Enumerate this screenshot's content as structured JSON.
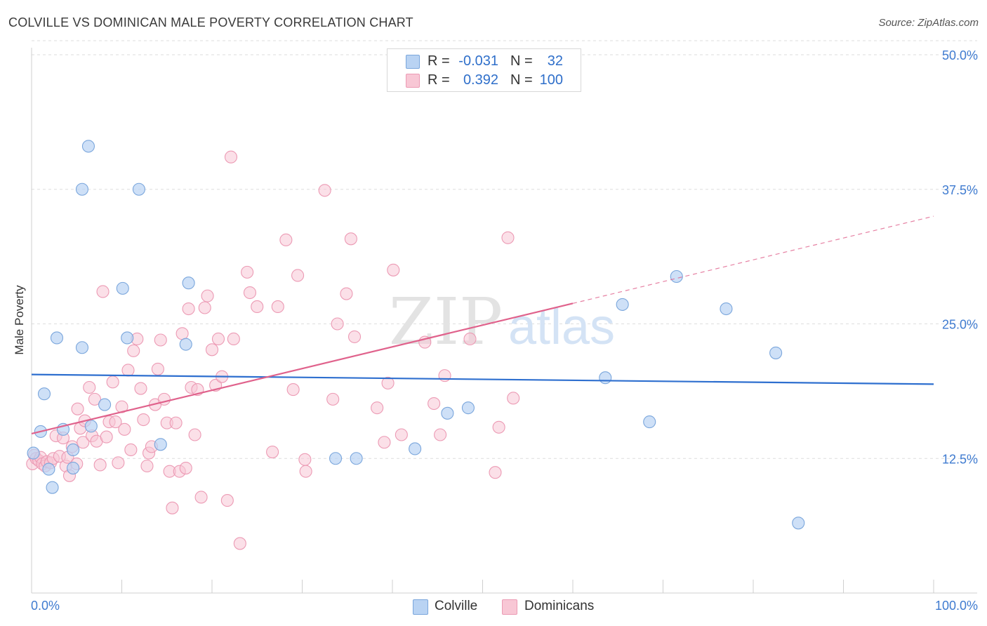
{
  "title": "COLVILLE VS DOMINICAN MALE POVERTY CORRELATION CHART",
  "source": "Source: ZipAtlas.com",
  "watermark": {
    "zip": "ZIP",
    "atlas": "atlas"
  },
  "legend_top": [
    {
      "r_label": "R =",
      "r_value": "-0.031",
      "n_label": "N =",
      "n_value": "32"
    },
    {
      "r_label": "R =",
      "r_value": "0.392",
      "n_label": "N =",
      "n_value": "100"
    }
  ],
  "legend_bottom": [
    "Colville",
    "Dominicans"
  ],
  "colors": {
    "colville_fill": "#b9d3f3",
    "colville_stroke": "#7aa6dc",
    "colville_line": "#2e6fcf",
    "dominican_fill": "#f8c7d5",
    "dominican_stroke": "#ec9ab4",
    "dominican_line": "#e0628c",
    "tick_label": "#3f7bd0",
    "grid": "#dedede"
  },
  "chart_data": {
    "type": "scatter",
    "title": "COLVILLE VS DOMINICAN MALE POVERTY CORRELATION CHART",
    "xlabel": "",
    "ylabel": "Male Poverty",
    "xlim": [
      0,
      100
    ],
    "ylim": [
      0,
      50
    ],
    "x_tick_labels": [
      "0.0%",
      "100.0%"
    ],
    "y_ticks": [
      12.5,
      25.0,
      37.5,
      50.0
    ],
    "y_tick_labels": [
      "12.5%",
      "25.0%",
      "37.5%",
      "50.0%"
    ],
    "grid": true,
    "legend_position": "top-center",
    "series": [
      {
        "name": "Colville",
        "points": [
          [
            0.2,
            13.0
          ],
          [
            1.0,
            15.0
          ],
          [
            1.4,
            18.5
          ],
          [
            1.9,
            11.5
          ],
          [
            2.3,
            9.8
          ],
          [
            2.8,
            23.7
          ],
          [
            3.5,
            15.2
          ],
          [
            4.6,
            11.6
          ],
          [
            4.6,
            13.3
          ],
          [
            5.6,
            22.8
          ],
          [
            5.6,
            37.5
          ],
          [
            6.3,
            41.5
          ],
          [
            6.6,
            15.5
          ],
          [
            8.1,
            17.5
          ],
          [
            10.1,
            28.3
          ],
          [
            10.6,
            23.7
          ],
          [
            11.9,
            37.5
          ],
          [
            14.3,
            13.8
          ],
          [
            17.1,
            23.1
          ],
          [
            17.4,
            28.8
          ],
          [
            33.7,
            12.5
          ],
          [
            36.0,
            12.5
          ],
          [
            42.5,
            13.4
          ],
          [
            46.1,
            16.7
          ],
          [
            48.4,
            17.2
          ],
          [
            63.6,
            20.0
          ],
          [
            65.5,
            26.8
          ],
          [
            68.5,
            15.9
          ],
          [
            71.5,
            29.4
          ],
          [
            77.0,
            26.4
          ],
          [
            82.5,
            22.3
          ],
          [
            85.0,
            6.5
          ]
        ],
        "trend": {
          "x": [
            0,
            100
          ],
          "y": [
            20.3,
            19.4
          ]
        }
      },
      {
        "name": "Dominicans",
        "points": [
          [
            0.1,
            12.0
          ],
          [
            0.3,
            12.8
          ],
          [
            0.5,
            12.5
          ],
          [
            0.8,
            12.3
          ],
          [
            1.0,
            12.6
          ],
          [
            1.2,
            12.0
          ],
          [
            1.5,
            11.8
          ],
          [
            1.7,
            12.2
          ],
          [
            2.1,
            12.1
          ],
          [
            2.4,
            12.5
          ],
          [
            2.7,
            14.6
          ],
          [
            3.1,
            12.7
          ],
          [
            3.5,
            14.4
          ],
          [
            3.8,
            11.8
          ],
          [
            4.0,
            12.6
          ],
          [
            4.2,
            10.9
          ],
          [
            4.5,
            13.6
          ],
          [
            5.0,
            12.0
          ],
          [
            5.1,
            17.1
          ],
          [
            5.4,
            15.3
          ],
          [
            5.7,
            14.0
          ],
          [
            5.9,
            16.0
          ],
          [
            6.4,
            19.1
          ],
          [
            6.7,
            14.6
          ],
          [
            7.0,
            18.0
          ],
          [
            7.2,
            14.1
          ],
          [
            7.6,
            11.9
          ],
          [
            7.9,
            28.0
          ],
          [
            8.3,
            14.5
          ],
          [
            8.6,
            15.9
          ],
          [
            9.0,
            19.6
          ],
          [
            9.3,
            15.9
          ],
          [
            9.6,
            12.1
          ],
          [
            10.0,
            17.3
          ],
          [
            10.3,
            15.2
          ],
          [
            10.7,
            20.7
          ],
          [
            11.0,
            13.3
          ],
          [
            11.3,
            22.5
          ],
          [
            11.7,
            23.6
          ],
          [
            12.1,
            19.0
          ],
          [
            12.4,
            16.1
          ],
          [
            12.8,
            11.8
          ],
          [
            13.0,
            13.0
          ],
          [
            13.3,
            13.6
          ],
          [
            13.7,
            17.5
          ],
          [
            14.0,
            20.8
          ],
          [
            14.3,
            23.5
          ],
          [
            14.7,
            18.0
          ],
          [
            15.0,
            15.8
          ],
          [
            15.3,
            11.3
          ],
          [
            15.6,
            7.9
          ],
          [
            16.0,
            15.8
          ],
          [
            16.4,
            11.3
          ],
          [
            16.7,
            24.1
          ],
          [
            17.1,
            11.6
          ],
          [
            17.4,
            26.4
          ],
          [
            17.7,
            19.1
          ],
          [
            18.1,
            14.7
          ],
          [
            18.4,
            18.9
          ],
          [
            18.8,
            8.9
          ],
          [
            19.2,
            26.5
          ],
          [
            19.5,
            27.6
          ],
          [
            20.0,
            22.6
          ],
          [
            20.4,
            19.3
          ],
          [
            20.7,
            23.6
          ],
          [
            21.1,
            20.1
          ],
          [
            21.7,
            8.6
          ],
          [
            22.1,
            40.5
          ],
          [
            22.4,
            23.6
          ],
          [
            23.1,
            4.6
          ],
          [
            23.9,
            29.8
          ],
          [
            24.2,
            27.9
          ],
          [
            25.0,
            26.6
          ],
          [
            26.7,
            13.1
          ],
          [
            27.3,
            26.6
          ],
          [
            28.2,
            32.8
          ],
          [
            29.0,
            18.9
          ],
          [
            29.5,
            29.5
          ],
          [
            30.3,
            12.4
          ],
          [
            30.4,
            11.3
          ],
          [
            32.5,
            37.4
          ],
          [
            33.4,
            18.0
          ],
          [
            33.9,
            25.0
          ],
          [
            34.9,
            27.8
          ],
          [
            35.4,
            32.9
          ],
          [
            35.8,
            23.8
          ],
          [
            38.3,
            17.2
          ],
          [
            39.1,
            14.0
          ],
          [
            39.5,
            19.5
          ],
          [
            40.1,
            30.0
          ],
          [
            41.0,
            14.7
          ],
          [
            43.6,
            23.3
          ],
          [
            44.6,
            17.6
          ],
          [
            45.3,
            14.7
          ],
          [
            45.8,
            20.2
          ],
          [
            48.6,
            23.6
          ],
          [
            51.4,
            11.2
          ],
          [
            51.8,
            15.4
          ],
          [
            52.8,
            33.0
          ],
          [
            53.4,
            18.1
          ]
        ],
        "trend": {
          "x": [
            0,
            60
          ],
          "y": [
            14.8,
            26.9
          ]
        },
        "trend_extension": {
          "x": [
            60,
            100
          ],
          "y": [
            26.9,
            35.0
          ]
        }
      }
    ]
  }
}
